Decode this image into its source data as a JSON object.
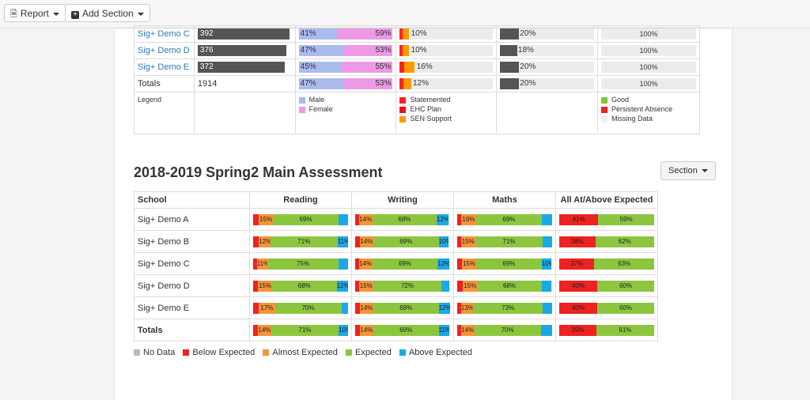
{
  "toolbar": {
    "report_label": "Report",
    "report_icon": "file-icon",
    "add_section_label": "Add Section",
    "add_section_icon": "plus-square-icon"
  },
  "colors": {
    "male": "#aabbee",
    "female": "#ee99e6",
    "statemented": "#ff2222",
    "ehc_plan": "#ee1111",
    "sen_support": "#ff9900",
    "good": "#7bc936",
    "persistent_absence": "#ee2222",
    "missing_data": "#eeeeee",
    "no_data": "#bbbbbb",
    "below_expected": "#ee2222",
    "almost_expected": "#f59538",
    "expected": "#8cc63f",
    "above_expected": "#1aa8e8"
  },
  "top_table": {
    "rows": [
      {
        "school": "Sig+ Demo C",
        "count": "392",
        "count_frac": 0.98,
        "male": "41%",
        "female": "59%",
        "male_frac": 0.41,
        "sen": "10%",
        "sen_frac": 0.1,
        "pupil_pct": "20%",
        "pupil_frac": 0.2,
        "attendance": "100%"
      },
      {
        "school": "Sig+ Demo D",
        "count": "376",
        "count_frac": 0.94,
        "male": "47%",
        "female": "53%",
        "male_frac": 0.47,
        "sen": "10%",
        "sen_frac": 0.1,
        "pupil_pct": "18%",
        "pupil_frac": 0.18,
        "attendance": "100%"
      },
      {
        "school": "Sig+ Demo E",
        "count": "372",
        "count_frac": 0.93,
        "male": "45%",
        "female": "55%",
        "male_frac": 0.45,
        "sen": "16%",
        "sen_frac": 0.16,
        "pupil_pct": "20%",
        "pupil_frac": 0.2,
        "attendance": "100%"
      }
    ],
    "totals": {
      "label": "Totals",
      "count": "1914",
      "male": "47%",
      "female": "53%",
      "male_frac": 0.47,
      "sen": "12%",
      "sen_frac": 0.12,
      "pupil_pct": "20%",
      "pupil_frac": 0.2,
      "attendance": "100%"
    },
    "legend": {
      "label": "Legend",
      "male": "Male",
      "female": "Female",
      "statemented": "Statemented",
      "ehc_plan": "EHC Plan",
      "sen_support": "SEN Support",
      "good": "Good",
      "persistent_absence": "Persistent Absence",
      "missing_data": "Missing Data"
    }
  },
  "assessment": {
    "title": "2018-2019 Spring2 Main Assessment",
    "section_button": "Section",
    "headers": {
      "school": "School",
      "reading": "Reading",
      "writing": "Writing",
      "maths": "Maths",
      "all": "All At/Above Expected"
    },
    "rows": [
      {
        "school": "Sig+ Demo A",
        "reading": {
          "below": 6,
          "almost": 15,
          "expected": 69,
          "above": 10
        },
        "writing": {
          "below": 4,
          "almost": 14,
          "expected": 68,
          "above": 12
        },
        "maths": {
          "below": 4,
          "almost": 16,
          "expected": 69,
          "above": 11
        },
        "all": {
          "below": 41,
          "at": 59
        },
        "labels": {
          "reading": [
            "15%",
            "69%",
            ""
          ],
          "writing": [
            "14%",
            "68%",
            "12%"
          ],
          "maths": [
            "16%",
            "69%",
            ""
          ],
          "all": [
            "41%",
            "59%"
          ]
        }
      },
      {
        "school": "Sig+ Demo B",
        "reading": {
          "below": 6,
          "almost": 12,
          "expected": 71,
          "above": 11
        },
        "writing": {
          "below": 5,
          "almost": 14,
          "expected": 69,
          "above": 10
        },
        "maths": {
          "below": 4,
          "almost": 15,
          "expected": 71,
          "above": 10
        },
        "all": {
          "below": 38,
          "at": 62
        },
        "labels": {
          "reading": [
            "12%",
            "71%",
            "11%"
          ],
          "writing": [
            "14%",
            "69%",
            "10%"
          ],
          "maths": [
            "15%",
            "71%",
            ""
          ],
          "all": [
            "38%",
            "62%"
          ]
        }
      },
      {
        "school": "Sig+ Demo C",
        "reading": {
          "below": 4,
          "almost": 11,
          "expected": 75,
          "above": 10
        },
        "writing": {
          "below": 4,
          "almost": 14,
          "expected": 69,
          "above": 12
        },
        "maths": {
          "below": 5,
          "almost": 15,
          "expected": 69,
          "above": 10
        },
        "all": {
          "below": 37,
          "at": 63
        },
        "labels": {
          "reading": [
            "11%",
            "75%",
            ""
          ],
          "writing": [
            "14%",
            "69%",
            "12%"
          ],
          "maths": [
            "15%",
            "69%",
            "10%"
          ],
          "all": [
            "37%",
            "63%"
          ]
        }
      },
      {
        "school": "Sig+ Demo D",
        "reading": {
          "below": 5,
          "almost": 15,
          "expected": 68,
          "above": 12
        },
        "writing": {
          "below": 4,
          "almost": 15,
          "expected": 72,
          "above": 8
        },
        "maths": {
          "below": 6,
          "almost": 15,
          "expected": 68,
          "above": 10
        },
        "all": {
          "below": 40,
          "at": 60
        },
        "labels": {
          "reading": [
            "15%",
            "68%",
            "12%"
          ],
          "writing": [
            "15%",
            "72%",
            ""
          ],
          "maths": [
            "15%",
            "68%",
            ""
          ],
          "all": [
            "40%",
            "60%"
          ]
        }
      },
      {
        "school": "Sig+ Demo E",
        "reading": {
          "below": 6,
          "almost": 17,
          "expected": 70,
          "above": 7
        },
        "writing": {
          "below": 5,
          "almost": 14,
          "expected": 69,
          "above": 12
        },
        "maths": {
          "below": 4,
          "almost": 13,
          "expected": 73,
          "above": 10
        },
        "all": {
          "below": 40,
          "at": 60
        },
        "labels": {
          "reading": [
            "17%",
            "70%",
            ""
          ],
          "writing": [
            "14%",
            "69%",
            "12%"
          ],
          "maths": [
            "13%",
            "73%",
            ""
          ],
          "all": [
            "40%",
            "60%"
          ]
        }
      },
      {
        "school": "Totals",
        "reading": {
          "below": 5,
          "almost": 14,
          "expected": 71,
          "above": 10
        },
        "writing": {
          "below": 5,
          "almost": 14,
          "expected": 69,
          "above": 11
        },
        "maths": {
          "below": 4,
          "almost": 14,
          "expected": 70,
          "above": 12
        },
        "all": {
          "below": 39,
          "at": 61
        },
        "labels": {
          "reading": [
            "14%",
            "71%",
            "10%"
          ],
          "writing": [
            "14%",
            "69%",
            "11%"
          ],
          "maths": [
            "14%",
            "70%",
            ""
          ],
          "all": [
            "39%",
            "61%"
          ]
        }
      }
    ],
    "legend": {
      "no_data": "No Data",
      "below": "Below Expected",
      "almost": "Almost Expected",
      "expected": "Expected",
      "above": "Above Expected"
    }
  }
}
